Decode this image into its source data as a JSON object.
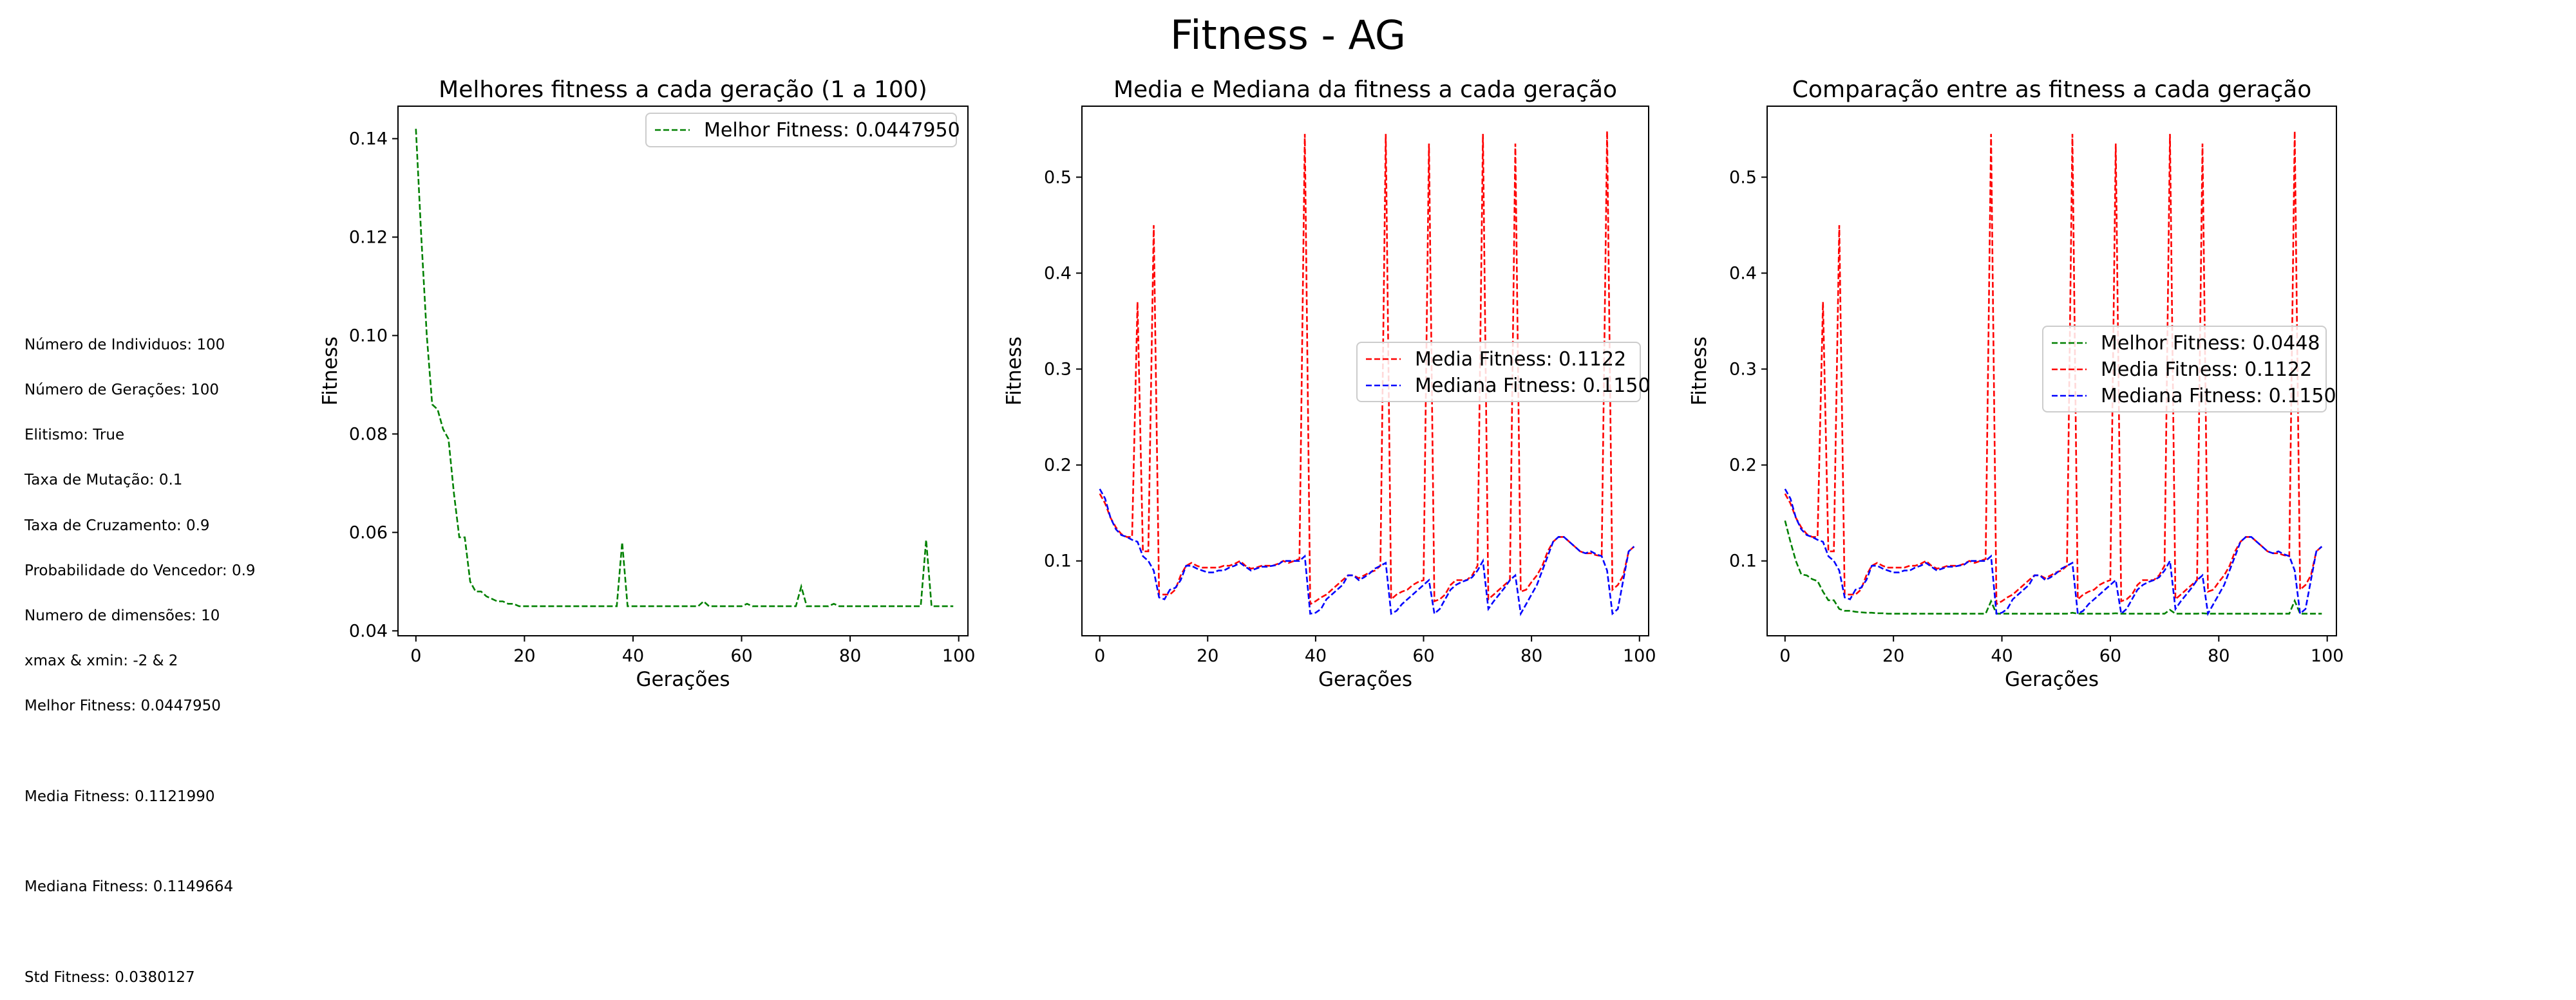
{
  "page": {
    "title": "Fitness - AG"
  },
  "info": {
    "individuos": "Número de Individuos: 100",
    "geracoes": "Número de Gerações: 100",
    "elitismo": "Elitismo: True",
    "mutacao": "Taxa de Mutação: 0.1",
    "cruzamento": "Taxa de Cruzamento: 0.9",
    "vencedor": "Probabilidade do Vencedor: 0.9",
    "dimensoes": "Numero de dimensões: 10",
    "limites": "xmax & xmin: -2 & 2",
    "melhor": "Melhor Fitness: 0.0447950",
    "media": "Media Fitness: 0.1121990",
    "mediana": "Mediana Fitness: 0.1149664",
    "std": "Std Fitness: 0.0380127"
  },
  "colors": {
    "best": "#008000",
    "mean": "#ff0000",
    "median": "#0000ff"
  },
  "chart_data": [
    {
      "type": "line",
      "title": "Melhores fitness a cada geração (1 a 100)",
      "xlabel": "Gerações",
      "ylabel": "Fitness",
      "xlim": [
        -3.3,
        101.7
      ],
      "ylim": [
        0.039,
        0.1466
      ],
      "xticks": [
        0,
        20,
        40,
        60,
        80,
        100
      ],
      "yticks": [
        0.04,
        0.06,
        0.08,
        0.1,
        0.12,
        0.14
      ],
      "ytick_labels": [
        "0.04",
        "0.06",
        "0.08",
        "0.10",
        "0.12",
        "0.14"
      ],
      "legend": "upper right",
      "series": [
        {
          "name": "Melhor Fitness: 0.0447950",
          "key": "best"
        }
      ]
    },
    {
      "type": "line",
      "title": "Media e Mediana da fitness a cada geração",
      "xlabel": "Gerações",
      "ylabel": "Fitness",
      "xlim": [
        -3.3,
        101.7
      ],
      "ylim": [
        0.022,
        0.574
      ],
      "xticks": [
        0,
        20,
        40,
        60,
        80,
        100
      ],
      "yticks": [
        0.1,
        0.2,
        0.3,
        0.4,
        0.5
      ],
      "ytick_labels": [
        "0.1",
        "0.2",
        "0.3",
        "0.4",
        "0.5"
      ],
      "legend": "center right",
      "series": [
        {
          "name": "Media Fitness: 0.1122",
          "key": "mean"
        },
        {
          "name": "Mediana Fitness: 0.1150",
          "key": "median"
        }
      ]
    },
    {
      "type": "line",
      "title": "Comparação entre as fitness a cada geração",
      "xlabel": "Gerações",
      "ylabel": "Fitness",
      "xlim": [
        -3.3,
        101.7
      ],
      "ylim": [
        0.022,
        0.574
      ],
      "xticks": [
        0,
        20,
        40,
        60,
        80,
        100
      ],
      "yticks": [
        0.1,
        0.2,
        0.3,
        0.4,
        0.5
      ],
      "ytick_labels": [
        "0.1",
        "0.2",
        "0.3",
        "0.4",
        "0.5"
      ],
      "legend": "center right",
      "series": [
        {
          "name": "Melhor Fitness: 0.0448",
          "key": "best"
        },
        {
          "name": "Media Fitness: 0.1122",
          "key": "mean"
        },
        {
          "name": "Mediana Fitness: 0.1150",
          "key": "median"
        }
      ]
    }
  ],
  "series_values": {
    "x": [
      0,
      1,
      2,
      3,
      4,
      5,
      6,
      7,
      8,
      9,
      10,
      11,
      12,
      13,
      14,
      15,
      16,
      17,
      18,
      19,
      20,
      21,
      22,
      23,
      24,
      25,
      26,
      27,
      28,
      29,
      30,
      31,
      32,
      33,
      34,
      35,
      36,
      37,
      38,
      39,
      40,
      41,
      42,
      43,
      44,
      45,
      46,
      47,
      48,
      49,
      50,
      51,
      52,
      53,
      54,
      55,
      56,
      57,
      58,
      59,
      60,
      61,
      62,
      63,
      64,
      65,
      66,
      67,
      68,
      69,
      70,
      71,
      72,
      73,
      74,
      75,
      76,
      77,
      78,
      79,
      80,
      81,
      82,
      83,
      84,
      85,
      86,
      87,
      88,
      89,
      90,
      91,
      92,
      93,
      94,
      95,
      96,
      97,
      98,
      99
    ],
    "best": [
      0.142,
      0.12,
      0.1,
      0.086,
      0.085,
      0.081,
      0.079,
      0.068,
      0.059,
      0.059,
      0.05,
      0.048,
      0.048,
      0.047,
      0.0465,
      0.046,
      0.046,
      0.0455,
      0.0455,
      0.045,
      0.045,
      0.045,
      0.045,
      0.045,
      0.045,
      0.045,
      0.045,
      0.045,
      0.045,
      0.045,
      0.045,
      0.045,
      0.045,
      0.045,
      0.045,
      0.045,
      0.045,
      0.045,
      0.058,
      0.045,
      0.045,
      0.045,
      0.045,
      0.045,
      0.045,
      0.045,
      0.045,
      0.045,
      0.045,
      0.045,
      0.045,
      0.045,
      0.045,
      0.046,
      0.045,
      0.045,
      0.045,
      0.045,
      0.045,
      0.045,
      0.045,
      0.0455,
      0.045,
      0.045,
      0.045,
      0.045,
      0.045,
      0.045,
      0.045,
      0.045,
      0.045,
      0.049,
      0.045,
      0.045,
      0.045,
      0.045,
      0.045,
      0.0455,
      0.045,
      0.045,
      0.045,
      0.045,
      0.045,
      0.045,
      0.045,
      0.045,
      0.045,
      0.045,
      0.045,
      0.045,
      0.045,
      0.045,
      0.045,
      0.045,
      0.0585,
      0.045,
      0.045,
      0.045,
      0.045,
      0.045
    ],
    "mean": [
      0.17,
      0.16,
      0.145,
      0.135,
      0.128,
      0.125,
      0.125,
      0.37,
      0.11,
      0.11,
      0.45,
      0.065,
      0.065,
      0.065,
      0.07,
      0.085,
      0.095,
      0.098,
      0.095,
      0.093,
      0.093,
      0.093,
      0.093,
      0.095,
      0.095,
      0.097,
      0.1,
      0.095,
      0.092,
      0.093,
      0.095,
      0.095,
      0.095,
      0.097,
      0.1,
      0.098,
      0.1,
      0.102,
      0.545,
      0.055,
      0.058,
      0.062,
      0.065,
      0.07,
      0.075,
      0.08,
      0.085,
      0.085,
      0.082,
      0.085,
      0.088,
      0.09,
      0.095,
      0.545,
      0.06,
      0.065,
      0.068,
      0.07,
      0.075,
      0.078,
      0.08,
      0.535,
      0.058,
      0.06,
      0.065,
      0.075,
      0.08,
      0.08,
      0.08,
      0.085,
      0.095,
      0.545,
      0.06,
      0.065,
      0.07,
      0.075,
      0.08,
      0.535,
      0.068,
      0.07,
      0.078,
      0.085,
      0.095,
      0.11,
      0.12,
      0.125,
      0.125,
      0.12,
      0.115,
      0.11,
      0.108,
      0.108,
      0.106,
      0.105,
      0.548,
      0.07,
      0.075,
      0.085,
      0.11,
      0.115
    ],
    "median": [
      0.175,
      0.165,
      0.145,
      0.133,
      0.127,
      0.125,
      0.122,
      0.12,
      0.105,
      0.1,
      0.09,
      0.062,
      0.06,
      0.07,
      0.072,
      0.08,
      0.095,
      0.095,
      0.092,
      0.09,
      0.088,
      0.088,
      0.09,
      0.09,
      0.093,
      0.095,
      0.098,
      0.094,
      0.09,
      0.092,
      0.094,
      0.094,
      0.095,
      0.096,
      0.1,
      0.1,
      0.1,
      0.1,
      0.105,
      0.045,
      0.046,
      0.05,
      0.06,
      0.065,
      0.07,
      0.075,
      0.085,
      0.085,
      0.08,
      0.083,
      0.087,
      0.092,
      0.095,
      0.098,
      0.045,
      0.048,
      0.055,
      0.06,
      0.065,
      0.07,
      0.075,
      0.08,
      0.045,
      0.05,
      0.06,
      0.07,
      0.075,
      0.078,
      0.08,
      0.083,
      0.09,
      0.1,
      0.05,
      0.058,
      0.065,
      0.072,
      0.08,
      0.085,
      0.045,
      0.055,
      0.065,
      0.075,
      0.09,
      0.105,
      0.12,
      0.125,
      0.125,
      0.12,
      0.115,
      0.11,
      0.108,
      0.11,
      0.107,
      0.105,
      0.09,
      0.045,
      0.05,
      0.08,
      0.11,
      0.115
    ]
  }
}
